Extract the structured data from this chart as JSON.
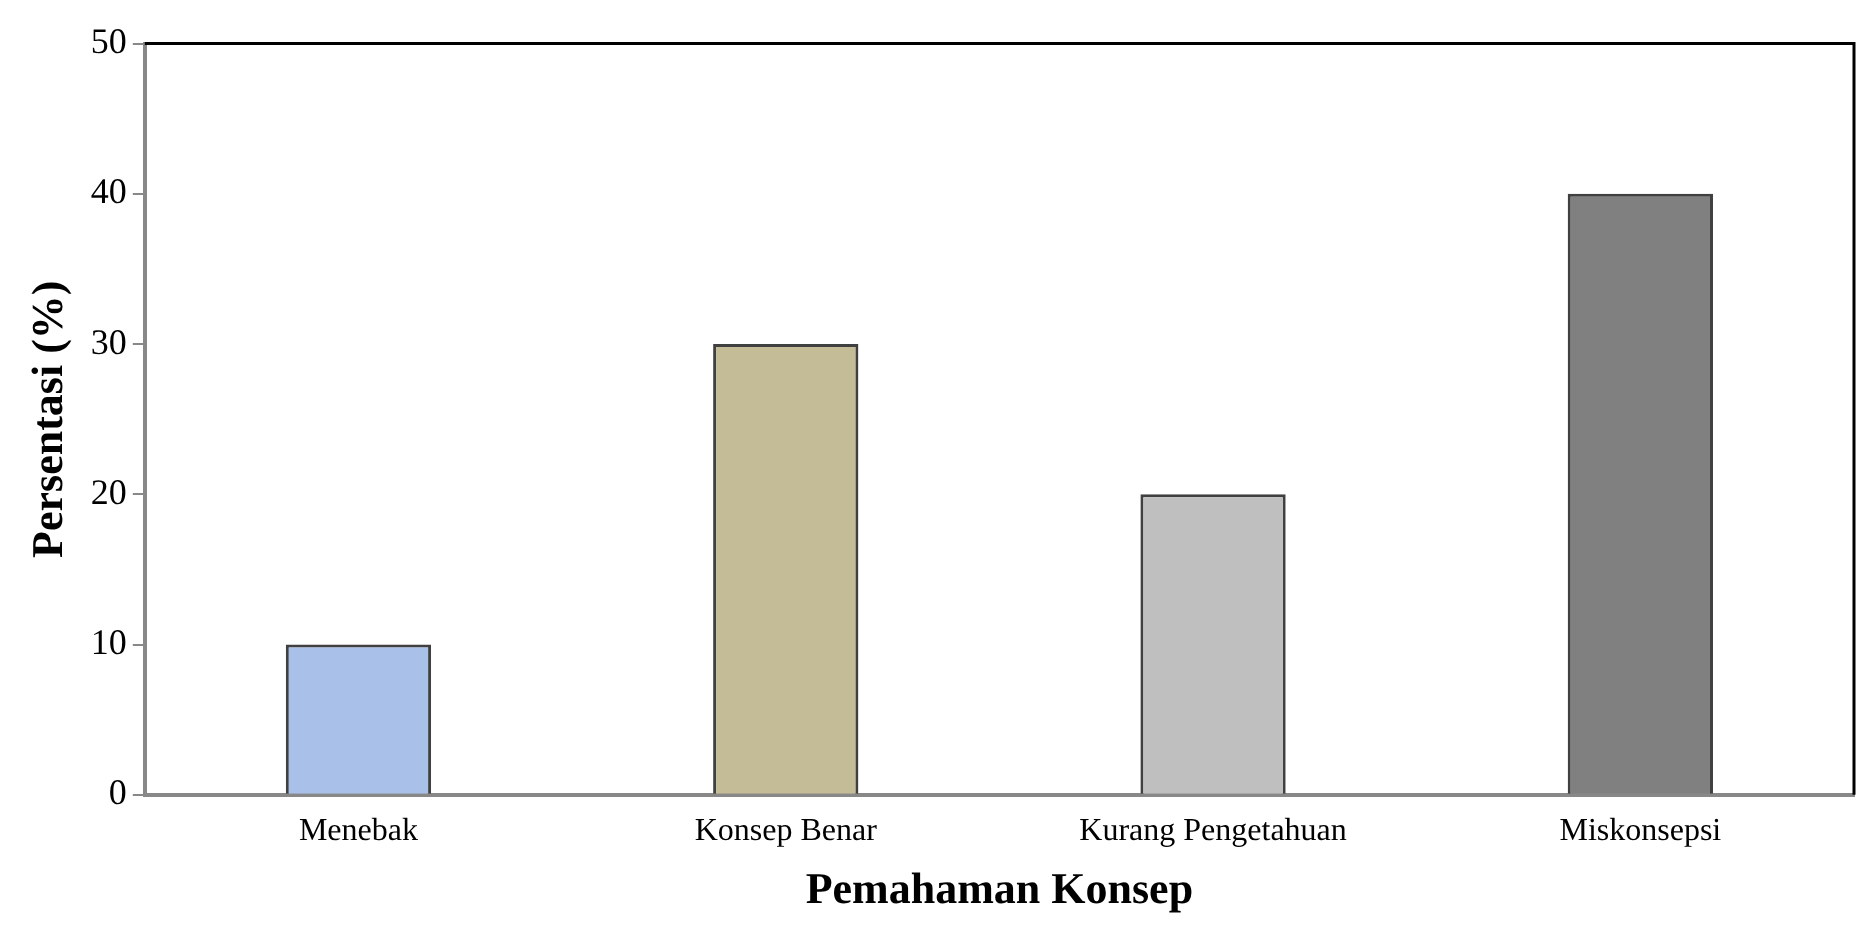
{
  "chart_data": {
    "type": "bar",
    "xlabel": "Pemahaman Konsep",
    "ylabel": "Persentasi (%)",
    "categories": [
      "Menebak",
      "Konsep Benar",
      "Kurang Pengetahuan",
      "Miskonsepsi"
    ],
    "values": [
      10,
      30,
      20,
      40
    ],
    "colors": [
      "#a9c0e8",
      "#c4bc96",
      "#bfbfbf",
      "#808080"
    ],
    "ylim": [
      0,
      50
    ],
    "yticks": [
      0,
      10,
      20,
      30,
      40,
      50
    ],
    "grid": false,
    "legend": false
  }
}
